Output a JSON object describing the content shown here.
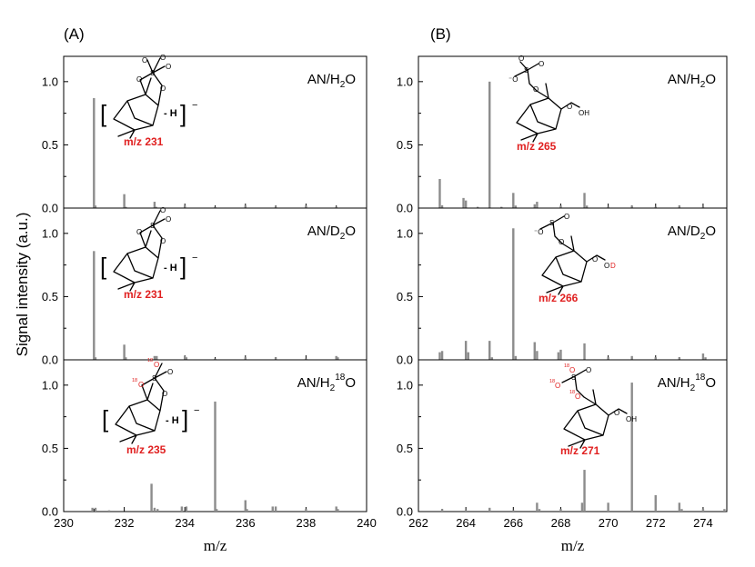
{
  "figure": {
    "ylabel": "Signal intensity (a.u.)",
    "panel_A_label": "(A)",
    "panel_B_label": "(B)"
  },
  "colors": {
    "bar": "#8c8c8c",
    "mz_label": "#e02020",
    "isotope": "#e02020",
    "axis": "#000000"
  },
  "chart_data": [
    {
      "type": "bar",
      "panel": "A",
      "xlabel": "m/z",
      "xlim": [
        230,
        240
      ],
      "xticks": [
        "230",
        "232",
        "234",
        "236",
        "238",
        "240"
      ],
      "ylim": [
        0,
        1.2
      ],
      "yticks": [
        "0.0",
        "0.5",
        "1.0"
      ],
      "subplots": [
        {
          "condition": "AN/H2O",
          "label_base": "AN/H",
          "label_sub": "2",
          "label_end": "O",
          "label_sup": "",
          "annotation": "m/z 231",
          "peaks": [
            {
              "x": 231.0,
              "y": 0.87
            },
            {
              "x": 231.05,
              "y": 0.02
            },
            {
              "x": 232.0,
              "y": 0.11
            },
            {
              "x": 232.05,
              "y": 0.01
            },
            {
              "x": 233.0,
              "y": 0.05
            },
            {
              "x": 233.05,
              "y": 0.01
            },
            {
              "x": 234.0,
              "y": 0.02
            },
            {
              "x": 235.0,
              "y": 0.01
            },
            {
              "x": 236.0,
              "y": 0.02
            },
            {
              "x": 237.0,
              "y": 0.01
            },
            {
              "x": 238.0,
              "y": 0.02
            },
            {
              "x": 239.0,
              "y": 0.01
            }
          ]
        },
        {
          "condition": "AN/D2O",
          "label_base": "AN/D",
          "label_sub": "2",
          "label_end": "O",
          "label_sup": "",
          "annotation": "m/z 231",
          "peaks": [
            {
              "x": 231.0,
              "y": 0.86
            },
            {
              "x": 231.05,
              "y": 0.02
            },
            {
              "x": 232.0,
              "y": 0.12
            },
            {
              "x": 232.05,
              "y": 0.02
            },
            {
              "x": 233.0,
              "y": 0.03
            },
            {
              "x": 233.07,
              "y": 0.03
            },
            {
              "x": 234.0,
              "y": 0.03
            },
            {
              "x": 234.05,
              "y": 0.02
            },
            {
              "x": 235.0,
              "y": 0.01
            },
            {
              "x": 236.0,
              "y": 0.02
            },
            {
              "x": 237.0,
              "y": 0.02
            },
            {
              "x": 238.0,
              "y": 0.01
            },
            {
              "x": 239.0,
              "y": 0.03
            },
            {
              "x": 239.05,
              "y": 0.02
            }
          ]
        },
        {
          "condition": "AN/H218O",
          "label_base": "AN/H",
          "label_sub": "2",
          "label_end": "O",
          "label_sup": "18",
          "annotation": "m/z 235",
          "peaks": [
            {
              "x": 230.95,
              "y": 0.03
            },
            {
              "x": 231.05,
              "y": 0.03
            },
            {
              "x": 231.5,
              "y": 0.01
            },
            {
              "x": 232.9,
              "y": 0.22
            },
            {
              "x": 233.0,
              "y": 0.03
            },
            {
              "x": 233.1,
              "y": 0.02
            },
            {
              "x": 233.9,
              "y": 0.04
            },
            {
              "x": 234.05,
              "y": 0.04
            },
            {
              "x": 235.0,
              "y": 0.87
            },
            {
              "x": 235.05,
              "y": 0.02
            },
            {
              "x": 236.0,
              "y": 0.09
            },
            {
              "x": 236.05,
              "y": 0.02
            },
            {
              "x": 236.9,
              "y": 0.04
            },
            {
              "x": 237.0,
              "y": 0.04
            },
            {
              "x": 238.0,
              "y": 0.02
            },
            {
              "x": 239.0,
              "y": 0.04
            },
            {
              "x": 239.05,
              "y": 0.02
            }
          ]
        }
      ]
    },
    {
      "type": "bar",
      "panel": "B",
      "xlabel": "m/z",
      "xlim": [
        262,
        275
      ],
      "xticks": [
        "262",
        "264",
        "266",
        "268",
        "270",
        "272",
        "274"
      ],
      "ylim": [
        0,
        1.2
      ],
      "yticks": [
        "0.0",
        "0.5",
        "1.0"
      ],
      "subplots": [
        {
          "condition": "AN/H2O",
          "label_base": "AN/H",
          "label_sub": "2",
          "label_end": "O",
          "label_sup": "",
          "annotation": "m/z 265",
          "peaks": [
            {
              "x": 262.9,
              "y": 0.23
            },
            {
              "x": 263.0,
              "y": 0.02
            },
            {
              "x": 263.9,
              "y": 0.08
            },
            {
              "x": 264.0,
              "y": 0.06
            },
            {
              "x": 264.5,
              "y": 0.01
            },
            {
              "x": 265.0,
              "y": 1.0
            },
            {
              "x": 265.5,
              "y": 0.01
            },
            {
              "x": 266.0,
              "y": 0.12
            },
            {
              "x": 266.1,
              "y": 0.02
            },
            {
              "x": 266.9,
              "y": 0.03
            },
            {
              "x": 267.0,
              "y": 0.05
            },
            {
              "x": 268.0,
              "y": 0.02
            },
            {
              "x": 269.0,
              "y": 0.12
            },
            {
              "x": 269.1,
              "y": 0.02
            },
            {
              "x": 270.0,
              "y": 0.01
            },
            {
              "x": 271.0,
              "y": 0.02
            },
            {
              "x": 272.0,
              "y": 0.01
            },
            {
              "x": 273.0,
              "y": 0.02
            },
            {
              "x": 274.0,
              "y": 0.01
            }
          ]
        },
        {
          "condition": "AN/D2O",
          "label_base": "AN/D",
          "label_sub": "2",
          "label_end": "O",
          "label_sup": "",
          "annotation": "m/z 266",
          "peaks": [
            {
              "x": 262.9,
              "y": 0.06
            },
            {
              "x": 263.0,
              "y": 0.07
            },
            {
              "x": 264.0,
              "y": 0.15
            },
            {
              "x": 264.1,
              "y": 0.06
            },
            {
              "x": 265.0,
              "y": 0.15
            },
            {
              "x": 265.1,
              "y": 0.02
            },
            {
              "x": 266.0,
              "y": 1.04
            },
            {
              "x": 266.1,
              "y": 0.03
            },
            {
              "x": 266.9,
              "y": 0.14
            },
            {
              "x": 267.0,
              "y": 0.07
            },
            {
              "x": 267.9,
              "y": 0.06
            },
            {
              "x": 268.0,
              "y": 0.08
            },
            {
              "x": 269.0,
              "y": 0.13
            },
            {
              "x": 270.0,
              "y": 0.02
            },
            {
              "x": 271.0,
              "y": 0.03
            },
            {
              "x": 272.0,
              "y": 0.02
            },
            {
              "x": 273.0,
              "y": 0.02
            },
            {
              "x": 274.0,
              "y": 0.05
            },
            {
              "x": 274.1,
              "y": 0.02
            }
          ]
        },
        {
          "condition": "AN/H218O",
          "label_base": "AN/H",
          "label_sub": "2",
          "label_end": "O",
          "label_sup": "18",
          "annotation": "m/z 271",
          "peaks": [
            {
              "x": 263.0,
              "y": 0.02
            },
            {
              "x": 264.0,
              "y": 0.01
            },
            {
              "x": 265.0,
              "y": 0.03
            },
            {
              "x": 266.0,
              "y": 0.01
            },
            {
              "x": 267.0,
              "y": 0.07
            },
            {
              "x": 267.1,
              "y": 0.02
            },
            {
              "x": 268.0,
              "y": 0.02
            },
            {
              "x": 268.9,
              "y": 0.07
            },
            {
              "x": 269.0,
              "y": 0.33
            },
            {
              "x": 270.0,
              "y": 0.07
            },
            {
              "x": 271.0,
              "y": 1.02
            },
            {
              "x": 272.0,
              "y": 0.13
            },
            {
              "x": 273.0,
              "y": 0.07
            },
            {
              "x": 273.1,
              "y": 0.02
            },
            {
              "x": 274.0,
              "y": 0.02
            },
            {
              "x": 274.9,
              "y": 0.02
            }
          ]
        }
      ]
    }
  ]
}
